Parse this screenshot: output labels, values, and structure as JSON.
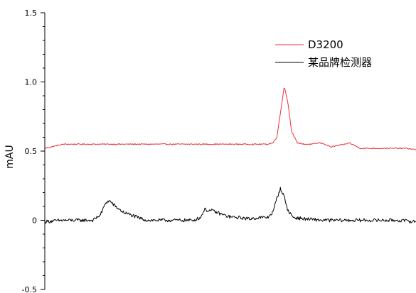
{
  "chart_data": {
    "type": "line",
    "title": "",
    "xlabel": "",
    "ylabel": "mAU",
    "ylim": [
      -0.5,
      1.5
    ],
    "xlim": [
      0,
      100
    ],
    "yticks": [
      -0.5,
      0,
      0.5,
      1.0,
      1.5
    ],
    "ytick_labels": [
      "-0.5",
      "0",
      "0.5",
      "1.0",
      "1.5"
    ],
    "y_minor_step": 0.1,
    "grid": false,
    "legend_position": "top-right",
    "series": [
      {
        "name": "D3200",
        "color": "#e8333b",
        "x": [
          0,
          5,
          10,
          15,
          20,
          25,
          30,
          35,
          40,
          45,
          50,
          55,
          58,
          60,
          61.5,
          62.5,
          63.5,
          64.5,
          65.5,
          66.5,
          68,
          70,
          72,
          74,
          75.5,
          77,
          79,
          81,
          82,
          83.5,
          85,
          87.5,
          90,
          92.5,
          95,
          97.5,
          100
        ],
        "y": [
          0.52,
          0.55,
          0.55,
          0.55,
          0.55,
          0.55,
          0.55,
          0.55,
          0.55,
          0.55,
          0.55,
          0.55,
          0.55,
          0.55,
          0.56,
          0.6,
          0.78,
          0.97,
          0.85,
          0.64,
          0.56,
          0.55,
          0.55,
          0.56,
          0.55,
          0.53,
          0.54,
          0.55,
          0.56,
          0.54,
          0.52,
          0.52,
          0.52,
          0.52,
          0.52,
          0.52,
          0.51
        ]
      },
      {
        "name": "某品牌检测器",
        "color": "#000000",
        "x": [
          0,
          5,
          10,
          13,
          15,
          16.5,
          17.5,
          19,
          21,
          23,
          25,
          27.5,
          30,
          35,
          40,
          42,
          43,
          44,
          45,
          47,
          49,
          51,
          52.5,
          55,
          58,
          60,
          61.5,
          62.5,
          63.5,
          64.5,
          65.5,
          67,
          70,
          75,
          80,
          85,
          90,
          95,
          100
        ],
        "y": [
          -0.01,
          0.0,
          0.0,
          0.0,
          0.04,
          0.13,
          0.14,
          0.1,
          0.06,
          0.04,
          0.02,
          0.0,
          0.0,
          0.0,
          0.0,
          0.02,
          0.08,
          0.07,
          0.07,
          0.05,
          0.03,
          0.02,
          0.02,
          0.01,
          0.02,
          0.02,
          0.06,
          0.16,
          0.23,
          0.17,
          0.07,
          0.02,
          0.01,
          0.0,
          0.0,
          0.0,
          0.0,
          0.0,
          -0.01
        ]
      }
    ]
  }
}
